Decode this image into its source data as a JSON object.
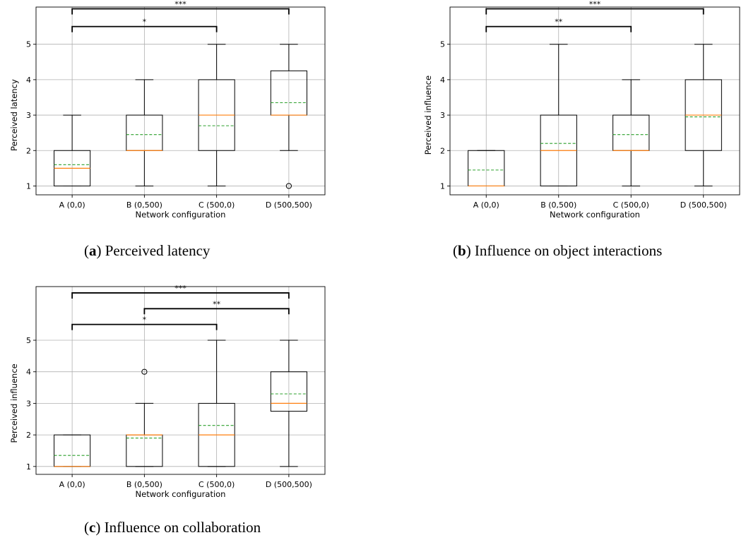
{
  "colors": {
    "box": "#000000",
    "median": "#ff7f0e",
    "mean": "#2ca02c",
    "grid": "#b0b0b0"
  },
  "chart_data": [
    {
      "type": "box",
      "xlabel": "Network configuration",
      "ylabel": "Perceived latency",
      "categories": [
        "A (0,0)",
        "B (0,500)",
        "C (500,0)",
        "D (500,500)"
      ],
      "yticks": [
        1,
        2,
        3,
        4,
        5
      ],
      "ylim": [
        0.75,
        6.05
      ],
      "grid": true,
      "boxes": [
        {
          "whislo": 1,
          "q1": 1,
          "med": 1.5,
          "mean": 1.6,
          "q3": 2,
          "whishi": 3,
          "fliers": []
        },
        {
          "whislo": 1,
          "q1": 2,
          "med": 2,
          "mean": 2.45,
          "q3": 3,
          "whishi": 4,
          "fliers": []
        },
        {
          "whislo": 1,
          "q1": 2,
          "med": 3,
          "mean": 2.7,
          "q3": 4,
          "whishi": 5,
          "fliers": []
        },
        {
          "whislo": 2,
          "q1": 3,
          "med": 3,
          "mean": 3.35,
          "q3": 4.25,
          "whishi": 5,
          "fliers": [
            1
          ]
        }
      ],
      "significance": [
        {
          "from": 0,
          "to": 2,
          "label": "*",
          "level": 1
        },
        {
          "from": 0,
          "to": 3,
          "label": "***",
          "level": 2
        }
      ],
      "caption_prefix": "(",
      "caption_letter": "a",
      "caption_text": ") Perceived latency"
    },
    {
      "type": "box",
      "xlabel": "Network configuration",
      "ylabel": "Perceived influence",
      "categories": [
        "A (0,0)",
        "B (0,500)",
        "C (500,0)",
        "D (500,500)"
      ],
      "yticks": [
        1,
        2,
        3,
        4,
        5
      ],
      "ylim": [
        0.75,
        6.05
      ],
      "grid": true,
      "boxes": [
        {
          "whislo": 1,
          "q1": 1,
          "med": 1,
          "mean": 1.45,
          "q3": 2,
          "whishi": 2,
          "fliers": []
        },
        {
          "whislo": 1,
          "q1": 1,
          "med": 2,
          "mean": 2.2,
          "q3": 3,
          "whishi": 5,
          "fliers": []
        },
        {
          "whislo": 1,
          "q1": 2,
          "med": 2,
          "mean": 2.45,
          "q3": 3,
          "whishi": 4,
          "fliers": []
        },
        {
          "whislo": 1,
          "q1": 2,
          "med": 3,
          "mean": 2.95,
          "q3": 4,
          "whishi": 5,
          "fliers": []
        }
      ],
      "significance": [
        {
          "from": 0,
          "to": 2,
          "label": "**",
          "level": 1
        },
        {
          "from": 0,
          "to": 3,
          "label": "***",
          "level": 2
        }
      ],
      "caption_prefix": "(",
      "caption_letter": "b",
      "caption_text": ") Influence on object interactions"
    },
    {
      "type": "box",
      "xlabel": "Network configuration",
      "ylabel": "Perceived influence",
      "categories": [
        "A (0,0)",
        "B (0,500)",
        "C (500,0)",
        "D (500,500)"
      ],
      "yticks": [
        1,
        2,
        3,
        4,
        5
      ],
      "ylim": [
        0.75,
        6.7
      ],
      "grid": true,
      "boxes": [
        {
          "whislo": 1,
          "q1": 1,
          "med": 1,
          "mean": 1.35,
          "q3": 2,
          "whishi": 2,
          "fliers": []
        },
        {
          "whislo": 1,
          "q1": 1,
          "med": 2,
          "mean": 1.9,
          "q3": 2,
          "whishi": 3,
          "fliers": [
            4
          ]
        },
        {
          "whislo": 1,
          "q1": 1,
          "med": 2,
          "mean": 2.3,
          "q3": 3,
          "whishi": 5,
          "fliers": []
        },
        {
          "whislo": 1,
          "q1": 2.75,
          "med": 3,
          "mean": 3.3,
          "q3": 4,
          "whishi": 5,
          "fliers": []
        }
      ],
      "significance": [
        {
          "from": 0,
          "to": 2,
          "label": "*",
          "level": 1
        },
        {
          "from": 1,
          "to": 3,
          "label": "**",
          "level": 2
        },
        {
          "from": 0,
          "to": 3,
          "label": "***",
          "level": 3
        }
      ],
      "caption_prefix": "(",
      "caption_letter": "c",
      "caption_text": ") Influence on collaboration"
    }
  ]
}
